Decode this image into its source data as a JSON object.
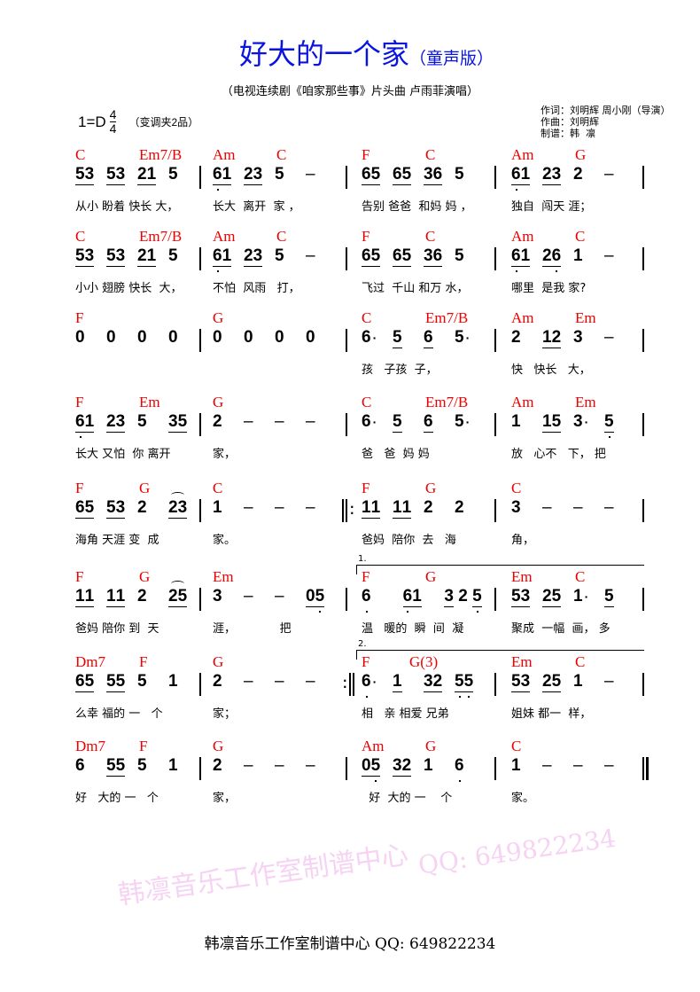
{
  "title": "好大的一个家",
  "title_suffix": "（童声版）",
  "subtitle": "（电视连续剧《咱家那些事》片头曲 卢雨菲演唱）",
  "key": "1=D",
  "time_signature": {
    "top": "4",
    "bottom": "4"
  },
  "capo": "（变调夹2品）",
  "credits": "作词：刘明辉 周小刚（导演）\n作曲：刘明辉\n制谱：韩  凛",
  "watermark": "韩凛音乐工作室制谱中心",
  "watermark_qq": "QQ: 649822234",
  "footer": "韩凛音乐工作室制谱中心 QQ: 649822234",
  "colors": {
    "title": "#0a14e0",
    "chords": "#e00000",
    "watermark": "#f6d3f3"
  },
  "rows": [
    {
      "barlines": [
        "single",
        "single",
        "single",
        "single"
      ],
      "measures": [
        {
          "chords": [
            {
              "name": "C",
              "beat": 0
            },
            {
              "name": "Em7/B",
              "beat": 2
            }
          ],
          "notes": [
            "_53",
            "_53",
            "_21",
            "5"
          ],
          "lyric": "从小 盼着 快长 大，"
        },
        {
          "chords": [
            {
              "name": "Am",
              "beat": 0
            },
            {
              "name": "C",
              "beat": 2
            }
          ],
          "notes": [
            "_6,1",
            "_23",
            "5",
            "–"
          ],
          "lyric": "长大  离开  家 ，"
        },
        {
          "chords": [
            {
              "name": "F",
              "beat": 0
            },
            {
              "name": "C",
              "beat": 2
            }
          ],
          "notes": [
            "_65",
            "_65",
            "_36",
            "5"
          ],
          "lyric": "告别 爸爸  和妈 妈 ，"
        },
        {
          "chords": [
            {
              "name": "Am",
              "beat": 0
            },
            {
              "name": "G",
              "beat": 2
            }
          ],
          "notes": [
            "_6,1",
            "_23",
            "2",
            "–"
          ],
          "lyric": "独自  闯天 涯；"
        }
      ]
    },
    {
      "barlines": [
        "single",
        "single",
        "single",
        "single"
      ],
      "measures": [
        {
          "chords": [
            {
              "name": "C",
              "beat": 0
            },
            {
              "name": "Em7/B",
              "beat": 2
            }
          ],
          "notes": [
            "_53",
            "_53",
            "_21",
            "5"
          ],
          "lyric": "小小 翅膀 快长  大，"
        },
        {
          "chords": [
            {
              "name": "Am",
              "beat": 0
            },
            {
              "name": "C",
              "beat": 2
            }
          ],
          "notes": [
            "_6,1",
            "_23",
            "5",
            "–"
          ],
          "lyric": "不怕  风雨   打，"
        },
        {
          "chords": [
            {
              "name": "F",
              "beat": 0
            },
            {
              "name": "C",
              "beat": 2
            }
          ],
          "notes": [
            "_65",
            "_65",
            "_36",
            "5"
          ],
          "lyric": "飞过  千山 和万 水，"
        },
        {
          "chords": [
            {
              "name": "Am",
              "beat": 0
            },
            {
              "name": "C",
              "beat": 2
            }
          ],
          "notes": [
            "_6,1",
            "_26,",
            "1",
            "–"
          ],
          "lyric": "哪里  是我 家?"
        }
      ]
    },
    {
      "barlines": [
        "single",
        "single",
        "single",
        "single"
      ],
      "measures": [
        {
          "chords": [
            {
              "name": "F",
              "beat": 0
            }
          ],
          "notes": [
            "0",
            "0",
            "0",
            "0"
          ],
          "lyric": ""
        },
        {
          "chords": [
            {
              "name": "G",
              "beat": 0
            }
          ],
          "notes": [
            "0",
            "0",
            "0",
            "0"
          ],
          "lyric": ""
        },
        {
          "chords": [
            {
              "name": "C",
              "beat": 0
            },
            {
              "name": "Em7/B",
              "beat": 2
            }
          ],
          "notes": [
            "6.",
            "_5",
            "_6",
            "5."
          ],
          "lyric": "孩   子孩  子，"
        },
        {
          "chords": [
            {
              "name": "Am",
              "beat": 0
            },
            {
              "name": "Em",
              "beat": 2
            }
          ],
          "notes": [
            "2",
            "_12",
            "3",
            "–"
          ],
          "lyric": "快   快长   大，"
        }
      ]
    },
    {
      "barlines": [
        "single",
        "single",
        "single",
        "single"
      ],
      "measures": [
        {
          "chords": [
            {
              "name": "F",
              "beat": 0
            },
            {
              "name": "Em",
              "beat": 2
            }
          ],
          "notes": [
            "_6,1",
            "_23",
            "5",
            "_35"
          ],
          "lyric": "长大 又怕  你 离开"
        },
        {
          "chords": [
            {
              "name": "G",
              "beat": 0
            }
          ],
          "notes": [
            "2",
            "–",
            "–",
            "–"
          ],
          "lyric": "家，"
        },
        {
          "chords": [
            {
              "name": "C",
              "beat": 0
            },
            {
              "name": "Em7/B",
              "beat": 2
            }
          ],
          "notes": [
            "6.",
            "_5",
            "_6",
            "5."
          ],
          "lyric": "爸   爸  妈 妈"
        },
        {
          "chords": [
            {
              "name": "Am",
              "beat": 0
            },
            {
              "name": "Em",
              "beat": 2
            }
          ],
          "notes": [
            "1",
            "_15",
            "3.",
            "_5,"
          ],
          "lyric": "放   心不   下， 把"
        }
      ]
    },
    {
      "barlines": [
        "single",
        "repeat-start",
        "single",
        "single"
      ],
      "measures": [
        {
          "chords": [
            {
              "name": "F",
              "beat": 0
            },
            {
              "name": "G",
              "beat": 2
            }
          ],
          "notes": [
            "_65",
            "_53",
            "2",
            "_23^"
          ],
          "lyric": "海角 天涯 变  成"
        },
        {
          "chords": [
            {
              "name": "C",
              "beat": 0
            }
          ],
          "notes": [
            "1",
            "–",
            "–",
            "–"
          ],
          "lyric": "家。"
        },
        {
          "chords": [
            {
              "name": "F",
              "beat": 0
            },
            {
              "name": "G",
              "beat": 2
            }
          ],
          "notes": [
            "_11",
            "_11",
            "2",
            "2"
          ],
          "lyric": "爸妈  陪你  去   海"
        },
        {
          "chords": [
            {
              "name": "C",
              "beat": 0
            }
          ],
          "notes": [
            "3",
            "–",
            "–",
            "–"
          ],
          "lyric": "角，"
        }
      ]
    },
    {
      "barlines": [
        "single",
        "single",
        "single",
        "single"
      ],
      "volta": "1.",
      "measures": [
        {
          "chords": [
            {
              "name": "F",
              "beat": 0
            },
            {
              "name": "G",
              "beat": 2
            }
          ],
          "notes": [
            "_11",
            "_11",
            "2",
            "_25^"
          ],
          "lyric": "爸妈 陪你 到  天"
        },
        {
          "chords": [
            {
              "name": "Em",
              "beat": 0
            }
          ],
          "notes": [
            "3",
            "–",
            "–",
            "_05,"
          ],
          "lyric": "涯，            把"
        },
        {
          "chords": [
            {
              "name": "F",
              "beat": 0
            },
            {
              "name": "G",
              "beat": 2
            }
          ],
          "notes": [
            "6,",
            "_6,1",
            "_3 2 _5,"
          ],
          "lyric": "温   暖的  瞬  间  凝"
        },
        {
          "chords": [
            {
              "name": "Em",
              "beat": 0
            },
            {
              "name": "C",
              "beat": 2
            }
          ],
          "notes": [
            "_53",
            "_25",
            "1.",
            "_5"
          ],
          "lyric": "聚成  一幅  画， 多"
        }
      ]
    },
    {
      "barlines": [
        "single",
        "repeat-end",
        "single",
        "single"
      ],
      "volta": "2.",
      "measures": [
        {
          "chords": [
            {
              "name": "Dm7",
              "beat": 0
            },
            {
              "name": "F",
              "beat": 2
            }
          ],
          "notes": [
            "_65",
            "_55",
            "5",
            "1"
          ],
          "lyric": "么幸 福的 一   个"
        },
        {
          "chords": [
            {
              "name": "G",
              "beat": 0
            }
          ],
          "notes": [
            "2",
            "–",
            "–",
            "–"
          ],
          "lyric": "家；"
        },
        {
          "chords": [
            {
              "name": "F",
              "beat": 0
            },
            {
              "name": "G(3)",
              "beat": 1.5
            }
          ],
          "notes": [
            "6,.",
            "_1",
            "_32",
            "_5,5,"
          ],
          "lyric": "相   亲 相爱 兄弟"
        },
        {
          "chords": [
            {
              "name": "Em",
              "beat": 0
            },
            {
              "name": "C",
              "beat": 2
            }
          ],
          "notes": [
            "_53",
            "_25",
            "1",
            "–"
          ],
          "lyric": "姐妹 都一  样，"
        }
      ]
    },
    {
      "barlines": [
        "single",
        "single",
        "single",
        "final"
      ],
      "measures": [
        {
          "chords": [
            {
              "name": "Dm7",
              "beat": 0
            },
            {
              "name": "F",
              "beat": 2
            }
          ],
          "notes": [
            "6",
            "_55",
            "5",
            "1"
          ],
          "lyric": "好   大的 一   个"
        },
        {
          "chords": [
            {
              "name": "G",
              "beat": 0
            }
          ],
          "notes": [
            "2",
            "–",
            "–",
            "–"
          ],
          "lyric": "家，"
        },
        {
          "chords": [
            {
              "name": "Am",
              "beat": 0
            },
            {
              "name": "G",
              "beat": 2
            }
          ],
          "notes": [
            "_05,",
            "_32",
            "1",
            "6,"
          ],
          "lyric": "  好  大的 一    个"
        },
        {
          "chords": [
            {
              "name": "C",
              "beat": 0
            }
          ],
          "notes": [
            "1",
            "–",
            "–",
            "–"
          ],
          "lyric": "家。"
        }
      ]
    }
  ]
}
